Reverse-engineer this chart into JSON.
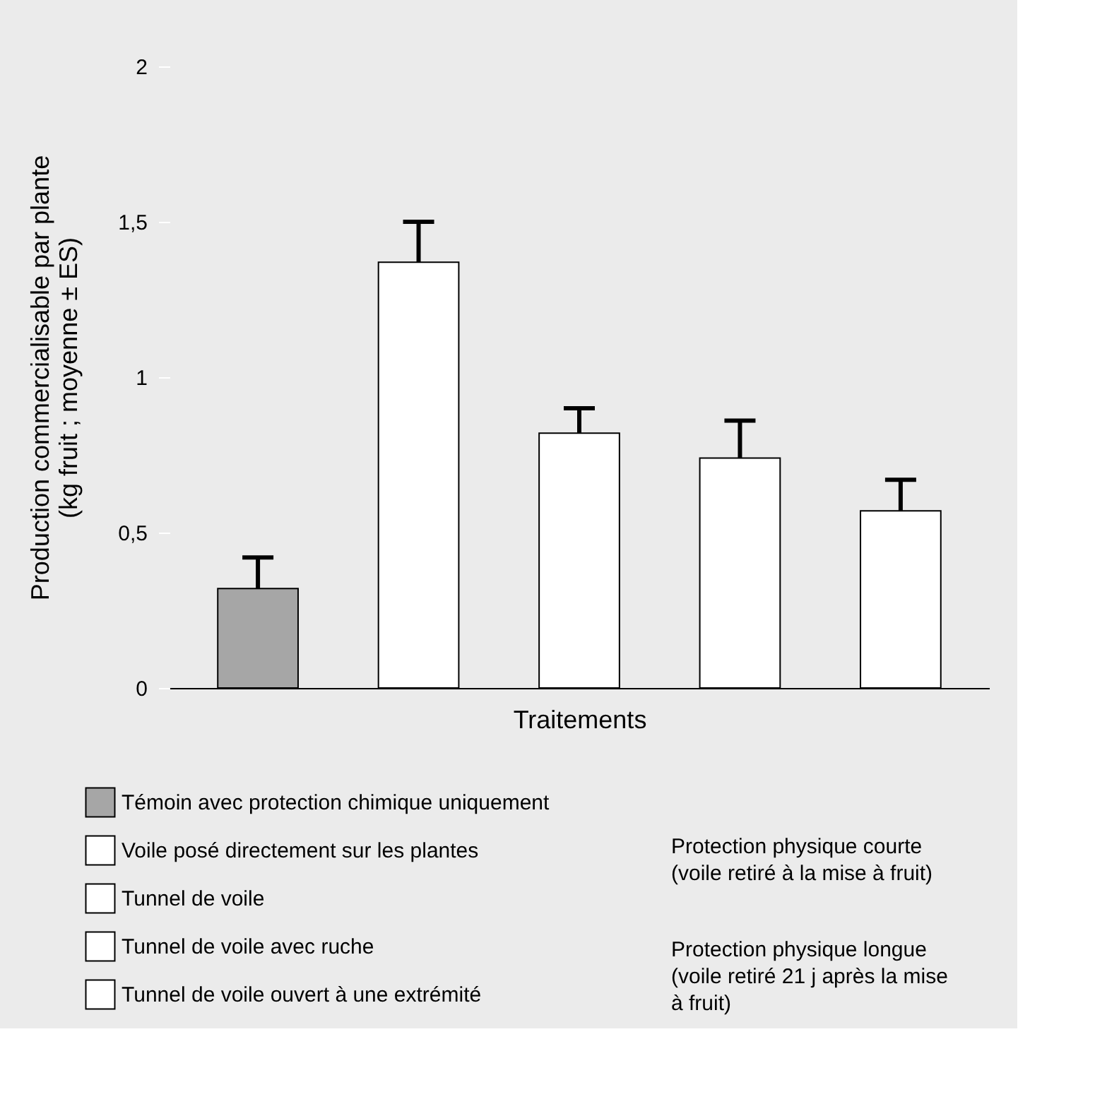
{
  "chart_data": {
    "type": "bar",
    "xlabel": "Traitements",
    "ylabel": "Production commercialisable par plante\n(kg fruit ; moyenne ± ES)",
    "categories": [
      null,
      null,
      null,
      null,
      null
    ],
    "series": [
      {
        "name": "Témoin avec protection chimique uniquement",
        "color": "#a6a6a6",
        "values": [
          0.32,
          null,
          null,
          null,
          null
        ],
        "errors": [
          [
            0.32,
            0.42
          ],
          null,
          null,
          null,
          null
        ]
      },
      {
        "name": "Voile posé directement sur les plantes",
        "color": "#ffffff",
        "values": [
          null,
          null,
          null,
          0.74,
          null
        ],
        "errors": [
          null,
          null,
          null,
          [
            0.74,
            0.86
          ],
          null
        ]
      },
      {
        "name": "Tunnel de voile",
        "color": "#ffffff",
        "values": [
          null,
          null,
          null,
          null,
          0.57
        ],
        "errors": [
          null,
          null,
          null,
          null,
          [
            0.57,
            0.67
          ]
        ]
      },
      {
        "name": "Tunnel de voile avec ruche",
        "color": "#ffffff",
        "values": [
          null,
          1.37,
          null,
          null,
          null
        ],
        "errors": [
          null,
          [
            1.37,
            1.5
          ],
          null,
          null,
          null
        ]
      },
      {
        "name": "Tunnel de voile ouvert à une extrémité",
        "color": "#ffffff",
        "values": [
          null,
          null,
          0.82,
          null,
          null
        ],
        "errors": [
          null,
          null,
          [
            0.82,
            0.9
          ],
          null,
          null
        ]
      }
    ],
    "ylim": [
      0,
      2
    ],
    "yticks": [
      0,
      {
        "value": 0.5,
        "label": "0,5"
      },
      1,
      {
        "value": 1.5,
        "label": "1,5"
      },
      2
    ],
    "grid": false,
    "legend": "bottom",
    "annotations": [
      "Protection physique courte\n(voile retiré à la mise à fruit)",
      "Protection physique longue\n(voile retiré 21 j après la mise\nà fruit)"
    ]
  }
}
